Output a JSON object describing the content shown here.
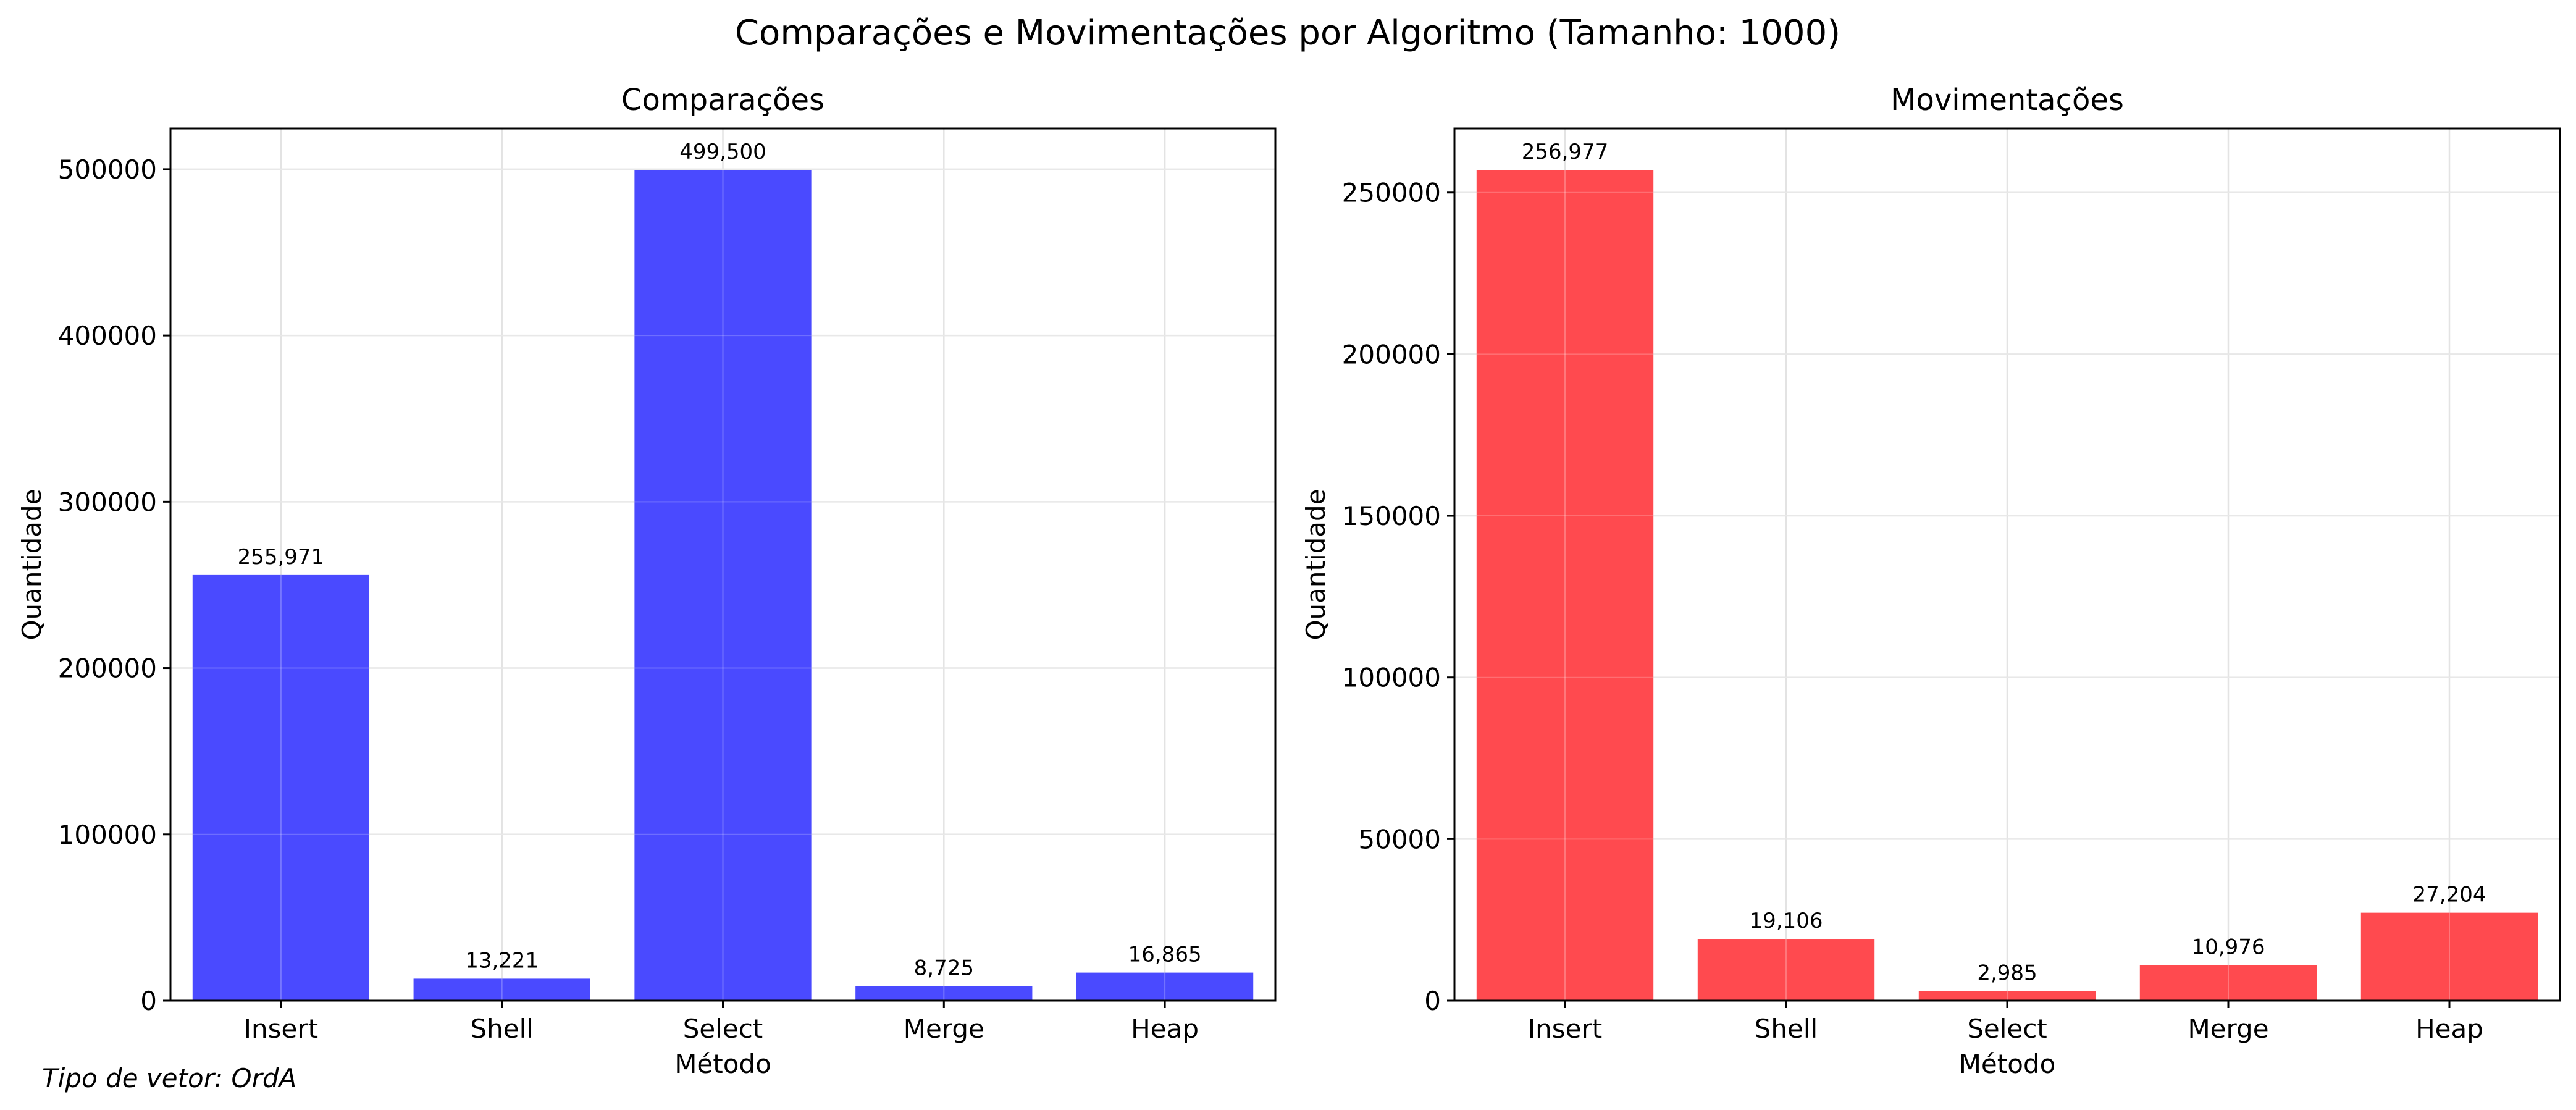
{
  "suptitle": "Comparações e Movimentações por Algoritmo (Tamanho: 1000)",
  "footnote": "Tipo de vetor: OrdA",
  "chart_data": [
    {
      "type": "bar",
      "title": "Comparações",
      "xlabel": "Método",
      "ylabel": "Quantidade",
      "categories": [
        "Insert",
        "Shell",
        "Select",
        "Merge",
        "Heap"
      ],
      "values": [
        255971,
        13221,
        499500,
        8725,
        16865
      ],
      "value_labels": [
        "255,971",
        "13,221",
        "499,500",
        "8,725",
        "16,865"
      ],
      "ylim": [
        0,
        524475
      ],
      "yticks": [
        0,
        100000,
        200000,
        300000,
        400000,
        500000
      ],
      "ytick_labels": [
        "0",
        "100000",
        "200000",
        "300000",
        "400000",
        "500000"
      ],
      "grid": true,
      "color": "#4a4aff"
    },
    {
      "type": "bar",
      "title": "Movimentações",
      "xlabel": "Método",
      "ylabel": "Quantidade",
      "categories": [
        "Insert",
        "Shell",
        "Select",
        "Merge",
        "Heap"
      ],
      "values": [
        256977,
        19106,
        2985,
        10976,
        27204
      ],
      "value_labels": [
        "256,977",
        "19,106",
        "2,985",
        "10,976",
        "27,204"
      ],
      "ylim": [
        0,
        269826
      ],
      "yticks": [
        0,
        50000,
        100000,
        150000,
        200000,
        250000
      ],
      "ytick_labels": [
        "0",
        "50000",
        "100000",
        "150000",
        "200000",
        "250000"
      ],
      "grid": true,
      "color": "#ff4a4f"
    }
  ]
}
